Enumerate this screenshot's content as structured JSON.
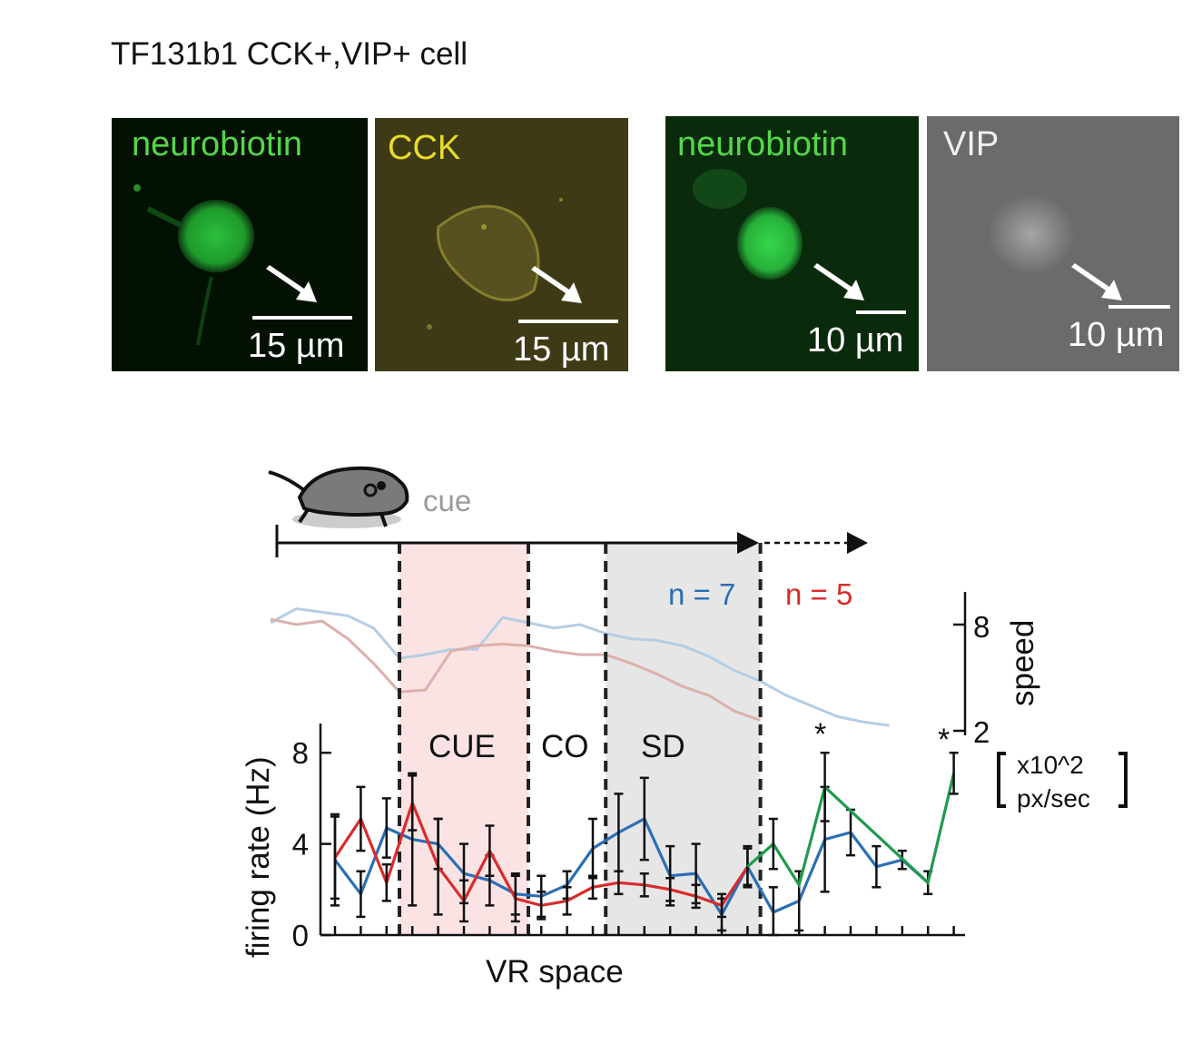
{
  "title": "TF131b1 CCK+,VIP+ cell",
  "panels": [
    {
      "label": "neurobiotin",
      "label_color": "#55d64a",
      "scale": "15 µm",
      "bg": "#031103"
    },
    {
      "label": "CCK",
      "label_color": "#e6dc2a",
      "scale": "15 µm",
      "bg": "#47421a"
    },
    {
      "label": "neurobiotin",
      "label_color": "#55d64a",
      "scale": "10 µm",
      "bg": "#0a2a0c"
    },
    {
      "label": "VIP",
      "label_color": "#f0f0f0",
      "scale": "10 µm",
      "bg": "#6b6b6b"
    }
  ],
  "chart_data": {
    "type": "line",
    "xlabel": "VR space",
    "ylabel": "firing rate (Hz)",
    "ylim": [
      0,
      8
    ],
    "yticks": [
      "0",
      "4",
      "8"
    ],
    "x_positions": 25,
    "cue_label": "cue",
    "zones": [
      {
        "label": "CUE",
        "color": "#fbe3e3",
        "from": 3,
        "to": 8
      },
      {
        "label": "CO",
        "color": "none",
        "from": 8,
        "to": 11
      },
      {
        "label": "SD",
        "color": "#e6e6e6",
        "from": 11,
        "to": 17
      }
    ],
    "n_labels": [
      {
        "text": "n = 7",
        "color": "#2a6fb5"
      },
      {
        "text": "n = 5",
        "color": "#d92b2b"
      }
    ],
    "speed_axis": {
      "label": "speed",
      "ticks": [
        "2",
        "8"
      ],
      "unit_line1": "x10^2",
      "unit_line2": "px/sec",
      "range": [
        2,
        9
      ]
    },
    "significance": [
      "*",
      "*"
    ],
    "series": [
      {
        "color": "#2a6fb5",
        "x": [
          0,
          1,
          2,
          3,
          4,
          5,
          6,
          7,
          8,
          9,
          10,
          11,
          12,
          13,
          14,
          15,
          16,
          17,
          18,
          19,
          20,
          21,
          22,
          23
        ],
        "values": [
          3.3,
          1.8,
          4.7,
          4.2,
          4.0,
          2.7,
          2.4,
          1.8,
          1.7,
          2.2,
          3.8,
          4.5,
          5.1,
          2.6,
          2.7,
          0.9,
          3.0,
          1.0,
          1.5,
          4.2,
          4.5,
          3.0,
          3.3,
          2.3
        ],
        "errors": [
          2.0,
          1.0,
          1.3,
          2.9,
          1.1,
          1.3,
          1.1,
          0.9,
          0.9,
          0.6,
          1.3,
          1.7,
          1.8,
          1.3,
          1.3,
          0.7,
          0.9,
          1.1,
          1.3,
          2.3,
          1.0,
          0.9,
          0.4,
          0.5
        ]
      },
      {
        "color": "#d92b2b",
        "x": [
          0,
          1,
          2,
          3,
          4,
          5,
          6,
          7,
          8,
          9,
          10,
          11,
          12,
          13,
          14,
          15,
          16
        ],
        "values": [
          3.4,
          5.1,
          2.3,
          5.8,
          3.0,
          1.5,
          3.7,
          1.6,
          1.3,
          1.5,
          2.1,
          2.3,
          2.2,
          2.0,
          1.7,
          1.3,
          3.0
        ],
        "errors": [
          1.8,
          1.4,
          0.8,
          1.2,
          2.1,
          0.9,
          1.1,
          1.0,
          0.6,
          0.6,
          0.5,
          0.5,
          0.5,
          0.5,
          0.5,
          0.5,
          0.8
        ]
      },
      {
        "color": "#1f9a4c",
        "x": [
          16,
          17,
          18,
          19,
          23,
          24
        ],
        "values": [
          3.0,
          4.0,
          2.2,
          6.5,
          2.3,
          7.1
        ],
        "errors": [
          0.0,
          1.1,
          0.0,
          1.5,
          0.0,
          0.9
        ]
      },
      {
        "color": "#b6cde3",
        "role": "speed",
        "x": [
          -2.5,
          -1.5,
          -0.5,
          0.5,
          1.5,
          2.5,
          3.5,
          4.5,
          5.5,
          6.5,
          7.5,
          8.5,
          9.5,
          10.5,
          11.5,
          12.5,
          13.5,
          14.5,
          15.5,
          16.5,
          17.5,
          18.5,
          19.5,
          20.5,
          21.5
        ],
        "values": [
          8.1,
          8.9,
          8.7,
          8.5,
          7.8,
          6.1,
          6.3,
          6.6,
          6.6,
          8.4,
          8.1,
          7.8,
          8.0,
          7.5,
          7.2,
          7.1,
          6.8,
          6.2,
          5.4,
          4.8,
          4.0,
          3.4,
          2.8,
          2.5,
          2.3
        ]
      },
      {
        "color": "#dcb0ab",
        "role": "speed",
        "x": [
          -2.5,
          -1.5,
          -0.5,
          0.5,
          1.5,
          2.5,
          3.5,
          4.5,
          5.5,
          6.5,
          7.5,
          8.5,
          9.5,
          10.5,
          11.5,
          12.5,
          13.5,
          14.5,
          15.5,
          16.5
        ],
        "values": [
          8.3,
          8.0,
          8.2,
          7.2,
          5.8,
          4.2,
          4.3,
          6.5,
          6.8,
          6.9,
          6.8,
          6.5,
          6.3,
          6.3,
          5.8,
          5.2,
          4.5,
          4.0,
          3.1,
          2.6
        ]
      }
    ]
  }
}
